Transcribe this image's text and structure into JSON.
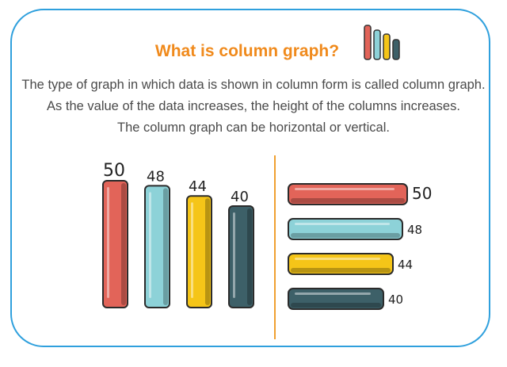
{
  "title": "What is column graph?",
  "description": [
    "The type of graph in which data is shown in column form is called column graph.",
    "As the value of the data increases, the height of the columns increases.",
    "The column graph can be horizontal or vertical."
  ],
  "chart_data": [
    {
      "type": "bar",
      "orientation": "vertical",
      "values": [
        50,
        48,
        44,
        40
      ],
      "colors": [
        "#e26459",
        "#8dd2d8",
        "#f5c518",
        "#3d6068"
      ]
    },
    {
      "type": "bar",
      "orientation": "horizontal",
      "values": [
        50,
        48,
        44,
        40
      ],
      "colors": [
        "#e26459",
        "#8dd2d8",
        "#f5c518",
        "#3d6068"
      ]
    }
  ],
  "icons": {
    "logo": "column-graph-icon"
  }
}
